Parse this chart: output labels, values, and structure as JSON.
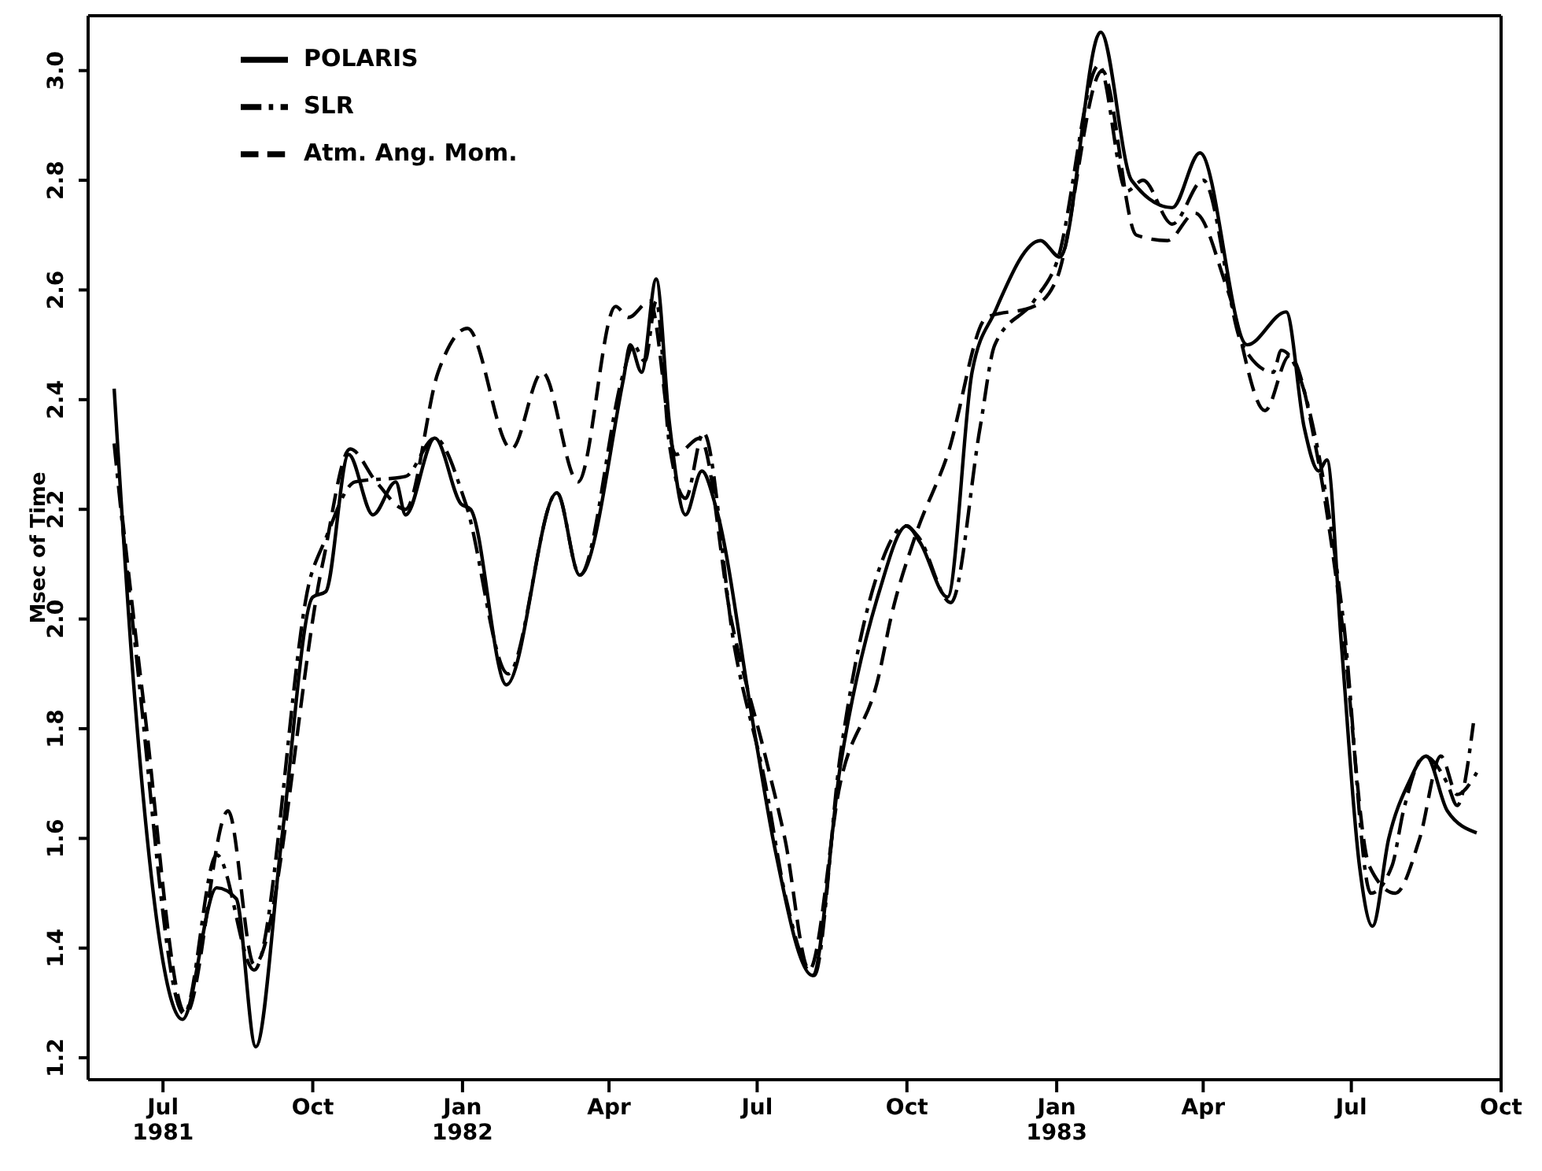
{
  "chart_data": {
    "type": "line",
    "ylabel": "Msec of Time",
    "xlim": [
      "1981-05-16",
      "1983-10-01"
    ],
    "ylim": [
      1.16,
      3.1
    ],
    "xticks": [
      {
        "value": "1981-07-01",
        "label": "Jul\n1981"
      },
      {
        "value": "1981-10-01",
        "label": "Oct"
      },
      {
        "value": "1982-01-01",
        "label": "Jan\n1982"
      },
      {
        "value": "1982-04-01",
        "label": "Apr"
      },
      {
        "value": "1982-07-01",
        "label": "Jul"
      },
      {
        "value": "1982-10-01",
        "label": "Oct"
      },
      {
        "value": "1983-01-01",
        "label": "Jan\n1983"
      },
      {
        "value": "1983-04-01",
        "label": "Apr"
      },
      {
        "value": "1983-07-01",
        "label": "Jul"
      },
      {
        "value": "1983-10-01",
        "label": "Oct"
      }
    ],
    "yticks": [
      1.2,
      1.4,
      1.6,
      1.8,
      {
        "value": 2,
        "label": "2.0"
      },
      2.2,
      2.4,
      2.6,
      2.8,
      {
        "value": 3,
        "label": "3.0"
      }
    ],
    "legend": "top left",
    "marker": "none",
    "series": [
      {
        "name": "POLARIS",
        "color": "#000000",
        "line_style": "solid",
        "x": [
          "1981-06-01",
          "1981-06-13",
          "1981-07-13",
          "1981-08-03",
          "1981-08-15",
          "1981-08-27",
          "1981-09-12",
          "1981-10-01",
          "1981-10-09",
          "1981-10-23",
          "1981-11-07",
          "1981-11-21",
          "1981-11-27",
          "1981-12-15",
          "1981-12-31",
          "1982-01-06",
          "1982-01-28",
          "1982-02-28",
          "1982-03-14",
          "1982-04-10",
          "1982-04-14",
          "1982-04-21",
          "1982-04-30",
          "1982-05-08",
          "1982-05-18",
          "1982-05-28",
          "1982-06-06",
          "1982-06-29",
          "1982-07-12",
          "1982-08-04",
          "1982-08-21",
          "1982-09-14",
          "1982-10-01",
          "1982-10-09",
          "1982-10-26",
          "1982-11-10",
          "1982-11-24",
          "1982-12-22",
          "1983-01-03",
          "1983-01-28",
          "1983-02-16",
          "1983-03-13",
          "1983-03-30",
          "1983-04-28",
          "1983-05-22",
          "1983-06-02",
          "1983-06-11",
          "1983-06-16",
          "1983-06-25",
          "1983-07-06",
          "1983-07-14",
          "1983-07-24",
          "1983-08-05",
          "1983-08-16",
          "1983-08-29",
          "1983-09-16"
        ],
        "values": [
          2.42,
          1.88,
          1.27,
          1.51,
          1.49,
          1.22,
          1.6,
          2.04,
          2.05,
          2.3,
          2.19,
          2.25,
          2.19,
          2.33,
          2.21,
          2.2,
          1.88,
          2.23,
          2.08,
          2.44,
          2.5,
          2.45,
          2.62,
          2.36,
          2.19,
          2.27,
          2.2,
          1.8,
          1.58,
          1.35,
          1.73,
          2.05,
          2.17,
          2.14,
          2.04,
          2.45,
          2.56,
          2.69,
          2.66,
          3.07,
          2.8,
          2.75,
          2.85,
          2.5,
          2.56,
          2.35,
          2.27,
          2.29,
          1.95,
          1.55,
          1.44,
          1.6,
          1.7,
          1.75,
          1.65,
          1.61
        ]
      },
      {
        "name": "SLR",
        "color": "#000000",
        "line_style": "dashdot",
        "x": [
          "1981-06-01",
          "1981-06-14",
          "1981-07-14",
          "1981-08-03",
          "1981-08-26",
          "1981-09-30",
          "1981-10-08",
          "1981-10-27",
          "1981-11-27",
          "1981-12-15",
          "1982-01-03",
          "1982-01-29",
          "1982-02-28",
          "1982-03-14",
          "1982-04-10",
          "1982-04-16",
          "1982-04-23",
          "1982-04-30",
          "1982-05-08",
          "1982-05-18",
          "1982-05-29",
          "1982-06-17",
          "1982-07-06",
          "1982-07-18",
          "1982-08-05",
          "1982-08-21",
          "1982-09-15",
          "1982-09-30",
          "1982-10-08",
          "1982-10-28",
          "1982-11-15",
          "1982-11-24",
          "1982-12-18",
          "1983-01-01",
          "1983-01-27",
          "1983-02-13",
          "1983-02-23",
          "1983-03-13",
          "1983-04-01",
          "1983-04-25",
          "1983-05-14",
          "1983-05-19",
          "1983-06-11",
          "1983-06-26",
          "1983-07-13",
          "1983-07-26",
          "1983-08-02",
          "1983-08-15",
          "1983-08-29",
          "1983-09-04",
          "1983-09-14"
        ],
        "values": [
          2.32,
          1.95,
          1.28,
          1.57,
          1.36,
          2.08,
          2.14,
          2.25,
          2.26,
          2.33,
          2.21,
          1.9,
          2.23,
          2.08,
          2.45,
          2.5,
          2.47,
          2.58,
          2.32,
          2.22,
          2.34,
          1.95,
          1.7,
          1.5,
          1.35,
          1.75,
          2.1,
          2.17,
          2.15,
          2.03,
          2.35,
          2.5,
          2.58,
          2.65,
          3.01,
          2.78,
          2.8,
          2.72,
          2.8,
          2.5,
          2.45,
          2.49,
          2.3,
          2.0,
          1.5,
          1.55,
          1.65,
          1.75,
          1.7,
          1.66,
          1.81
        ]
      },
      {
        "name": "Atm. Ang. Mom.",
        "color": "#000000",
        "line_style": "dashed",
        "x": [
          "1981-06-04",
          "1981-06-19",
          "1981-07-15",
          "1981-08-10",
          "1981-08-26",
          "1981-10-07",
          "1981-10-24",
          "1981-11-09",
          "1981-11-27",
          "1981-12-17",
          "1982-01-04",
          "1982-01-31",
          "1982-02-19",
          "1982-03-13",
          "1982-04-05",
          "1982-04-13",
          "1982-04-26",
          "1982-05-12",
          "1982-05-27",
          "1982-06-15",
          "1982-07-06",
          "1982-07-18",
          "1982-08-02",
          "1982-08-21",
          "1982-09-14",
          "1982-09-21",
          "1982-10-06",
          "1982-10-26",
          "1982-11-19",
          "1982-12-18",
          "1983-01-01",
          "1983-01-29",
          "1983-02-19",
          "1983-03-10",
          "1983-03-27",
          "1983-04-16",
          "1983-05-09",
          "1983-05-24",
          "1983-06-10",
          "1983-06-25",
          "1983-07-12",
          "1983-07-28",
          "1983-08-12",
          "1983-08-25",
          "1983-09-04",
          "1983-09-16"
        ],
        "values": [
          2.24,
          1.85,
          1.28,
          1.65,
          1.37,
          2.1,
          2.31,
          2.25,
          2.2,
          2.45,
          2.53,
          2.31,
          2.45,
          2.25,
          2.57,
          2.55,
          2.58,
          2.3,
          2.33,
          2.0,
          1.75,
          1.6,
          1.36,
          1.7,
          1.9,
          2.0,
          2.15,
          2.3,
          2.55,
          2.57,
          2.62,
          3.0,
          2.7,
          2.69,
          2.74,
          2.6,
          2.38,
          2.48,
          2.3,
          2.0,
          1.55,
          1.5,
          1.6,
          1.75,
          1.68,
          1.72
        ]
      }
    ]
  }
}
